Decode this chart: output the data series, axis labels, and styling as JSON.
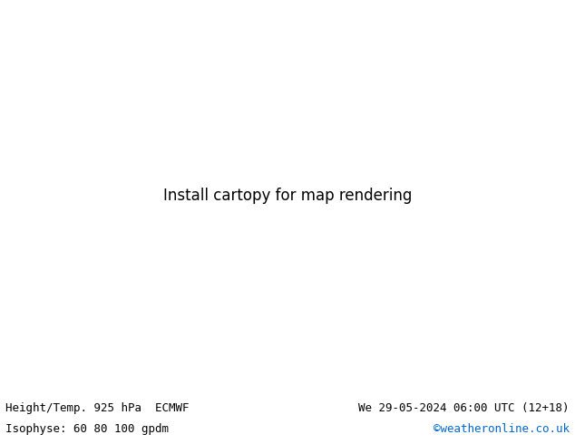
{
  "title_left": "Height/Temp. 925 hPa  ECMWF",
  "title_right": "We 29-05-2024 06:00 UTC (12+18)",
  "subtitle_left": "Isophyse: 60 80 100 gpdm",
  "subtitle_right": "©weatheronline.co.uk",
  "subtitle_right_color": "#0066cc",
  "bg_color": "#ffffff",
  "ocean_color": "#e8e8e8",
  "land_color": "#b8ecb8",
  "coastline_color": "#888888",
  "text_color": "#000000",
  "font_family": "monospace",
  "fig_width": 6.34,
  "fig_height": 4.9,
  "dpi": 100,
  "map_extent": [
    -75,
    55,
    20,
    75
  ],
  "footer_fontsize": 9.0,
  "contour_colors": [
    "#cc00cc",
    "#ff0000",
    "#ff8800",
    "#cccc00",
    "#008800",
    "#00aaff",
    "#0000cc",
    "#00cccc",
    "#888800",
    "#444444"
  ],
  "contour_linewidth": 0.65
}
